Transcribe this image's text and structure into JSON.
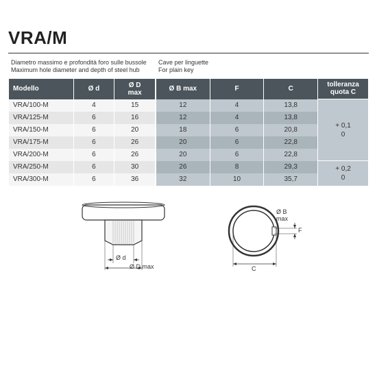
{
  "title": "VRA/M",
  "section_left": {
    "line1": "Diametro massimo e profondità foro sulle bussole",
    "line2": "Maximum hole diameter and depth of steel hub"
  },
  "section_right": {
    "line1": "Cave per linguette",
    "line2": "For plain key"
  },
  "headers_left": {
    "model": "Modello",
    "dd": "Ø d",
    "dmax": "Ø D\nmax"
  },
  "headers_right": {
    "bmax": "Ø B max",
    "f": "F",
    "c": "C",
    "tol": "tolleranza\nquota C"
  },
  "rows_left": [
    {
      "model": "VRA/100-M",
      "dd": "4",
      "dmax": "15"
    },
    {
      "model": "VRA/125-M",
      "dd": "6",
      "dmax": "16"
    },
    {
      "model": "VRA/150-M",
      "dd": "6",
      "dmax": "20"
    },
    {
      "model": "VRA/175-M",
      "dd": "6",
      "dmax": "26"
    },
    {
      "model": "VRA/200-M",
      "dd": "6",
      "dmax": "26"
    },
    {
      "model": "VRA/250-M",
      "dd": "6",
      "dmax": "30"
    },
    {
      "model": "VRA/300-M",
      "dd": "6",
      "dmax": "36"
    }
  ],
  "rows_right": [
    {
      "bmax": "12",
      "f": "4",
      "c": "13,8"
    },
    {
      "bmax": "12",
      "f": "4",
      "c": "13,8"
    },
    {
      "bmax": "18",
      "f": "6",
      "c": "20,8"
    },
    {
      "bmax": "20",
      "f": "6",
      "c": "22,8"
    },
    {
      "bmax": "20",
      "f": "6",
      "c": "22,8"
    },
    {
      "bmax": "26",
      "f": "8",
      "c": "29,3"
    },
    {
      "bmax": "32",
      "f": "10",
      "c": "35,7"
    }
  ],
  "tol_groups": [
    {
      "rowspan": 5,
      "value": "+ 0,1\n0"
    },
    {
      "rowspan": 2,
      "value": "+ 0,2\n0"
    }
  ],
  "diagram_labels": {
    "od": "Ø d",
    "odmax": "Ø D max",
    "obmax": "Ø B\nmax",
    "f": "F",
    "c": "C"
  },
  "colors": {
    "header_bg": "#4b555b",
    "light_row": "#f5f5f5",
    "dark_row": "#e6e6e6",
    "blue_light": "#bfc8ce",
    "blue_dark": "#a9b4bb"
  }
}
